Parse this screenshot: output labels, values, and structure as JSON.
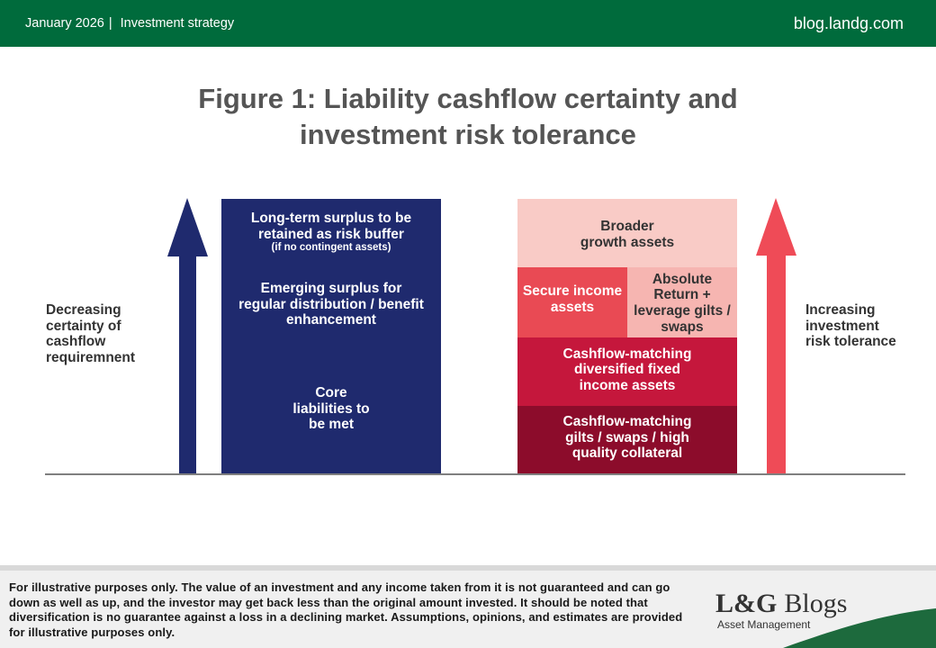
{
  "header": {
    "date": "January 2026",
    "separator": "|",
    "section": "Investment strategy",
    "site": "blog.landg.com"
  },
  "figure": {
    "title": "Figure 1: Liability cashflow certainty and investment risk tolerance",
    "left_axis_label": [
      "Decreasing",
      "certainty of",
      "cashflow",
      "requiremnent"
    ],
    "right_axis_label": [
      "Increasing",
      "investment",
      "risk tolerance"
    ],
    "liabilities": {
      "long_term_surplus": [
        "Long-term surplus to be",
        "retained as risk buffer"
      ],
      "long_term_surplus_note": "(if no contingent assets)",
      "emerging_surplus": [
        "Emerging surplus for",
        "regular distribution / benefit",
        "enhancement"
      ],
      "core_liabilities": [
        "Core",
        "liabilities to",
        "be met"
      ]
    },
    "assets": {
      "broader_growth": [
        "Broader",
        "growth assets"
      ],
      "secure_income": [
        "Secure income",
        "assets"
      ],
      "absolute_return": [
        "Absolute",
        "Return +",
        "leverage gilts /",
        "swaps"
      ],
      "cashflow_matching_fixed_income": [
        "Cashflow-matching",
        "diversified fixed",
        "income assets"
      ],
      "cashflow_matching_gilts": [
        "Cashflow-matching",
        "gilts / swaps / high",
        "quality collateral"
      ]
    }
  },
  "footer": {
    "disclaimer": [
      "For illustrative purposes only. The value of an investment and any income taken from it is not guaranteed and can go",
      "down as well as up, and the investor may get back less than the original amount invested. It should be noted that",
      "diversification is no guarantee against a loss in a declining market. Assumptions, opinions, and estimates are provided",
      "for illustrative purposes only."
    ],
    "logo_mark": "L&G",
    "logo_word": "Blogs",
    "logo_sub": "Asset Management"
  },
  "colors": {
    "header_green": "#006b3c",
    "navy": "#1f2a6e",
    "red_arrow": "#ef4b57",
    "broader_growth": "#f9cbc6",
    "secure_income": "#e94a54",
    "absolute_return": "#f6b5b1",
    "cashflow_diversified": "#c5173c",
    "cashflow_gilts": "#8c0c2b",
    "title_gray": "#555555",
    "label_dark": "#333333",
    "baseline": "#7f7f7f",
    "footer_bg": "#f0f0f0",
    "footer_band": "#d9d9d9",
    "swoosh_green": "#1d6a3d"
  }
}
